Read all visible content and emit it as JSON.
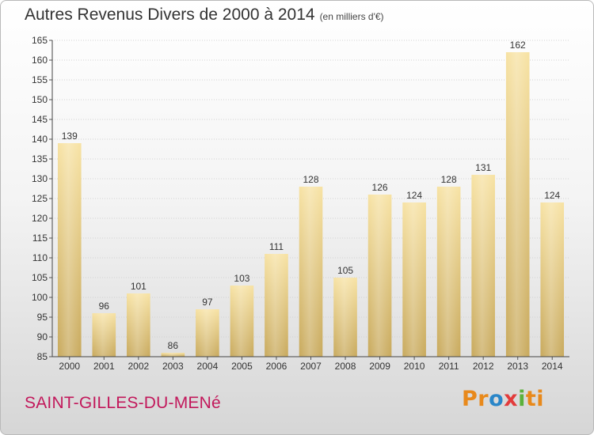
{
  "header": {
    "title": "Autres Revenus Divers de 2000 à 2014",
    "subtitle": "(en milliers d'€)"
  },
  "footer": {
    "commune": "SAINT-GILLES-DU-MENé",
    "brand": [
      {
        "text": "Pr",
        "color": "#e8891b"
      },
      {
        "text": "o",
        "color": "#2a86c8"
      },
      {
        "text": "x",
        "color": "#e23b3b"
      },
      {
        "text": "i",
        "color": "#5bb13b"
      },
      {
        "text": "ti",
        "color": "#e8891b"
      }
    ]
  },
  "chart_data": {
    "type": "bar",
    "title": "Autres Revenus Divers de 2000 à 2014",
    "subtitle": "(en milliers d'€)",
    "categories": [
      "2000",
      "2001",
      "2002",
      "2003",
      "2004",
      "2005",
      "2006",
      "2007",
      "2008",
      "2009",
      "2010",
      "2011",
      "2012",
      "2013",
      "2014"
    ],
    "values": [
      139,
      96,
      101,
      86,
      97,
      103,
      111,
      128,
      105,
      126,
      124,
      128,
      131,
      162,
      124
    ],
    "ylim": [
      85,
      165
    ],
    "yticks": [
      85,
      90,
      95,
      100,
      105,
      110,
      115,
      120,
      125,
      130,
      135,
      140,
      145,
      150,
      155,
      160,
      165
    ],
    "grid": "horizontal",
    "bar_color": "#d9bf6e"
  }
}
